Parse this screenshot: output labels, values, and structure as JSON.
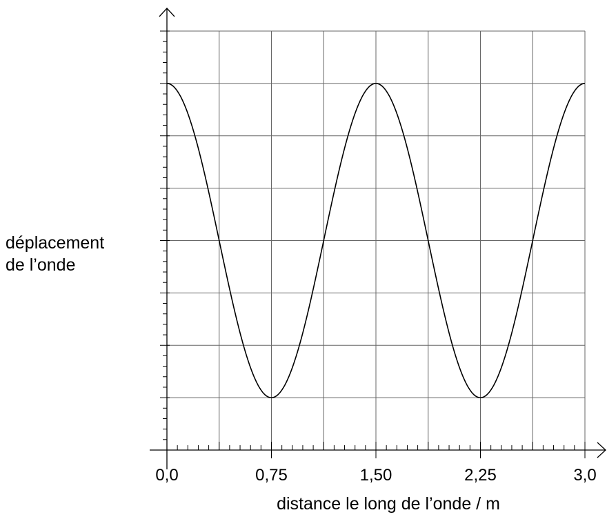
{
  "chart_data": {
    "type": "line",
    "title": "",
    "xlabel": "distance le long de l’onde / m",
    "ylabel_line1": "déplacement",
    "ylabel_line2": "de l’onde",
    "xlim": [
      0,
      3.0
    ],
    "ylim": [
      -4,
      4
    ],
    "y_tick_labels_shown": false,
    "x_ticks": [
      {
        "value": 0,
        "label": "0,0"
      },
      {
        "value": 0.75,
        "label": "0,75"
      },
      {
        "value": 1.5,
        "label": "1,50"
      },
      {
        "value": 2.25,
        "label": "2,25"
      },
      {
        "value": 3.0,
        "label": "3,0"
      }
    ],
    "grid": true,
    "grid_x_step": 0.375,
    "grid_y_step": 1,
    "minor_x_step": 0.075,
    "minor_y_step": 0.2,
    "series": [
      {
        "amplitude": 3,
        "wavelength": 1.5,
        "phase": "cosine",
        "x": [
          0,
          0.375,
          0.75,
          1.125,
          1.5,
          1.875,
          2.25,
          2.625,
          3.0
        ],
        "y": [
          3,
          0,
          -3,
          0,
          3,
          0,
          -3,
          0,
          3
        ]
      }
    ]
  }
}
